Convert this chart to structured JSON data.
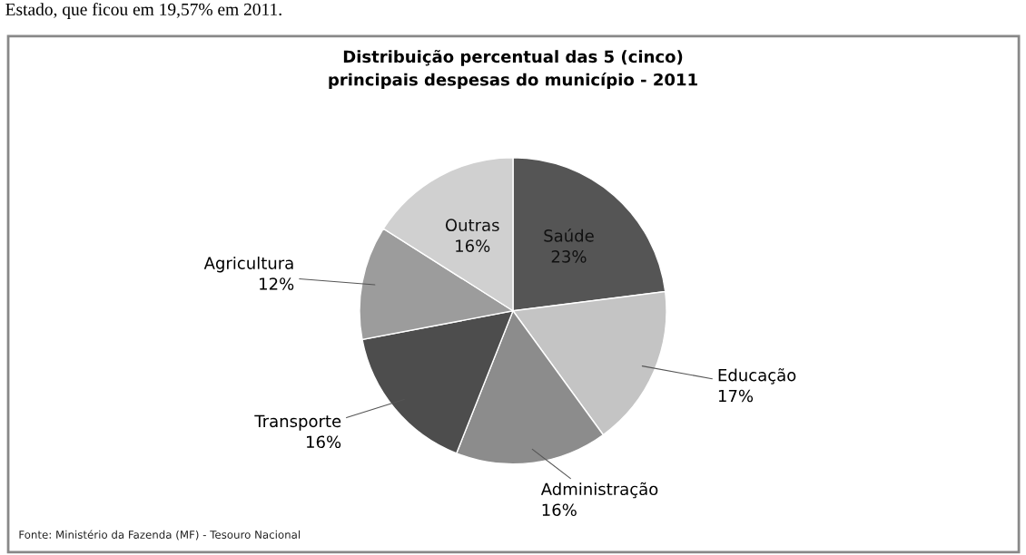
{
  "chart_data": {
    "type": "pie",
    "title": "Distribuição percentual das 5 (cinco)\nprincipais despesas do município - 2011",
    "categories": [
      "Saúde",
      "Educação",
      "Administração",
      "Transporte",
      "Agricultura",
      "Outras"
    ],
    "values": [
      23,
      17,
      16,
      16,
      12,
      16
    ],
    "colors": [
      "#555555",
      "#c4c4c4",
      "#8c8c8c",
      "#4d4d4d",
      "#9c9c9c",
      "#d0d0d0"
    ],
    "value_labels": [
      "23%",
      "17%",
      "16%",
      "16%",
      "12%",
      "16%"
    ],
    "legend": false,
    "annotations": [
      "Estado, que ficou em 19,57% em 2011.",
      "Fonte: Ministério da Fazenda (MF) - Tesouro Nacional"
    ]
  }
}
